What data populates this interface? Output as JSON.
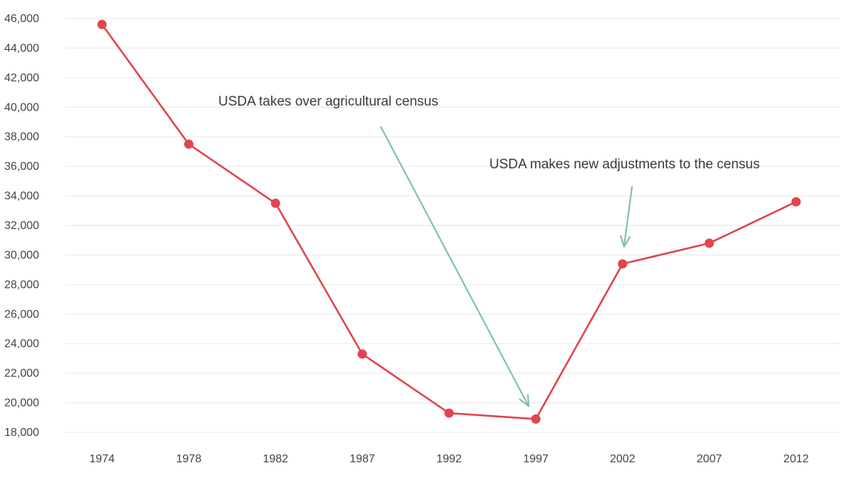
{
  "colors": {
    "series": "#e0454c",
    "grid": "#e6e6e6",
    "annotation_arrow": "#7fc4a0",
    "text": "#444444"
  },
  "chart_data": {
    "type": "line",
    "title": "",
    "xlabel": "",
    "ylabel": "",
    "ylim": [
      17000,
      46000
    ],
    "yticks": [
      "18,000",
      "20,000",
      "22,000",
      "24,000",
      "26,000",
      "28,000",
      "30,000",
      "32,000",
      "34,000",
      "36,000",
      "38,000",
      "40,000",
      "42,000",
      "44,000",
      "46,000"
    ],
    "ytick_values": [
      18000,
      20000,
      22000,
      24000,
      26000,
      28000,
      30000,
      32000,
      34000,
      36000,
      38000,
      40000,
      42000,
      44000,
      46000
    ],
    "categories": [
      "1974",
      "1978",
      "1982",
      "1987",
      "1992",
      "1997",
      "2002",
      "2007",
      "2012"
    ],
    "series": [
      {
        "values": [
          45600,
          37500,
          33500,
          23300,
          19300,
          18900,
          29400,
          30800,
          33600
        ]
      }
    ],
    "grid": true,
    "annotations": [
      {
        "text": "USDA takes over agricultural census",
        "points_to": "1997"
      },
      {
        "text": "USDA makes new adjustments to the census",
        "points_to": "2002"
      }
    ]
  }
}
